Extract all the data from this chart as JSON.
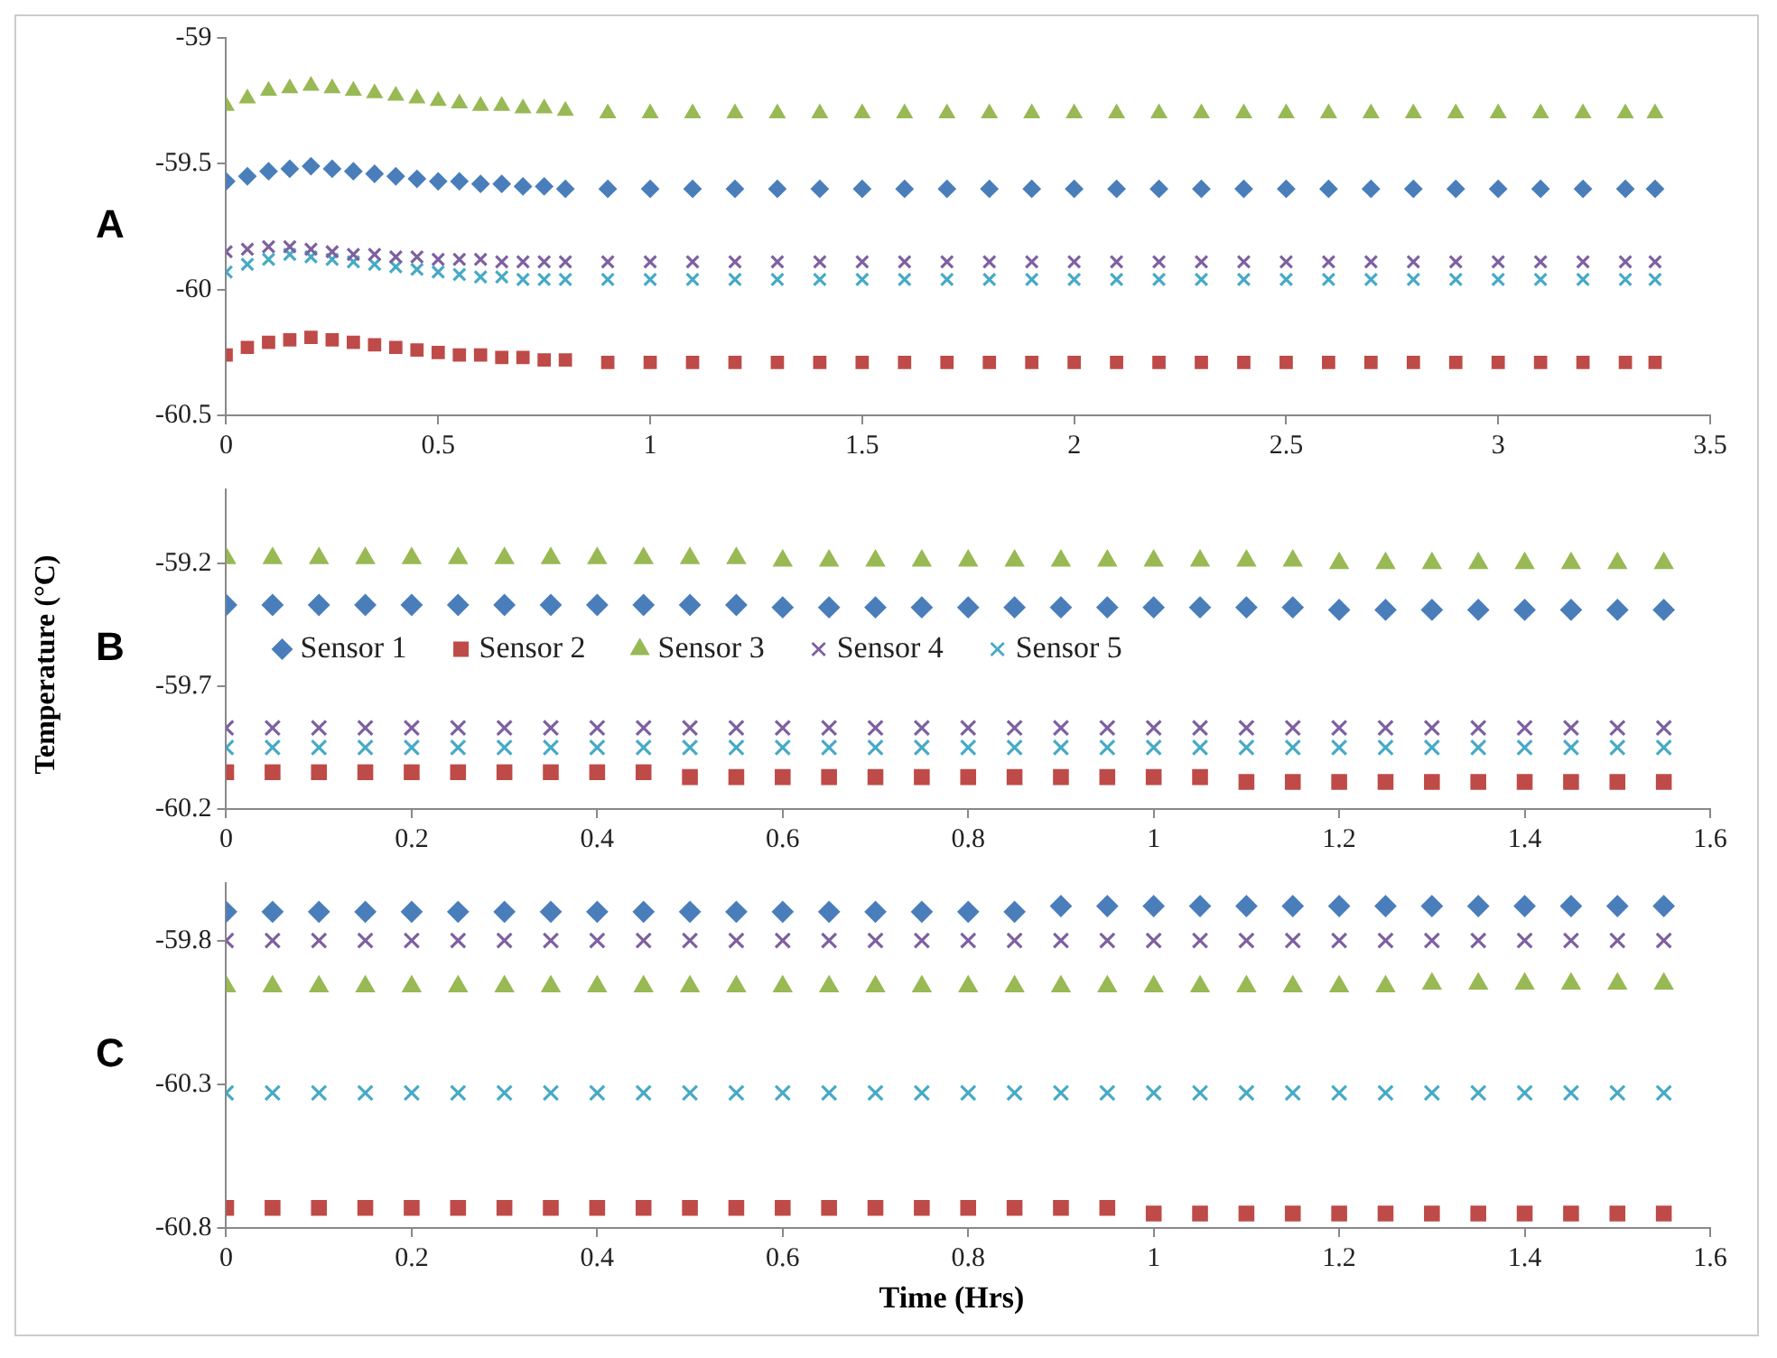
{
  "chart_data": [
    {
      "type": "scatter",
      "annotations": [
        "A"
      ],
      "x": [
        0,
        0.05,
        0.1,
        0.15,
        0.2,
        0.25,
        0.3,
        0.35,
        0.4,
        0.45,
        0.5,
        0.55,
        0.6,
        0.65,
        0.7,
        0.75,
        0.8,
        0.9,
        1,
        1.1,
        1.2,
        1.3,
        1.4,
        1.5,
        1.6,
        1.7,
        1.8,
        1.9,
        2,
        2.1,
        2.2,
        2.3,
        2.4,
        2.5,
        2.6,
        2.7,
        2.8,
        2.9,
        3,
        3.1,
        3.2,
        3.3,
        3.37
      ],
      "xlim": [
        0,
        3.5
      ],
      "xticks": [
        0,
        0.5,
        1,
        1.5,
        2,
        2.5,
        3,
        3.5
      ],
      "ylim": [
        -60.5,
        -59
      ],
      "yticks": [
        -60.5,
        -60,
        -59.5,
        -59
      ],
      "grid": false,
      "series": [
        {
          "color": "#4a7ebb",
          "marker": "diamond",
          "values": [
            -59.57,
            -59.55,
            -59.53,
            -59.52,
            -59.51,
            -59.52,
            -59.53,
            -59.54,
            -59.55,
            -59.56,
            -59.57,
            -59.57,
            -59.58,
            -59.58,
            -59.59,
            -59.59,
            -59.6,
            -59.6,
            -59.6,
            -59.6,
            -59.6,
            -59.6,
            -59.6,
            -59.6,
            -59.6,
            -59.6,
            -59.6,
            -59.6,
            -59.6,
            -59.6,
            -59.6,
            -59.6,
            -59.6,
            -59.6,
            -59.6,
            -59.6,
            -59.6,
            -59.6,
            -59.6,
            -59.6,
            -59.6,
            -59.6,
            -59.6
          ]
        },
        {
          "color": "#be4b48",
          "marker": "square",
          "values": [
            -60.26,
            -60.23,
            -60.21,
            -60.2,
            -60.19,
            -60.2,
            -60.21,
            -60.22,
            -60.23,
            -60.24,
            -60.25,
            -60.26,
            -60.26,
            -60.27,
            -60.27,
            -60.28,
            -60.28,
            -60.29,
            -60.29,
            -60.29,
            -60.29,
            -60.29,
            -60.29,
            -60.29,
            -60.29,
            -60.29,
            -60.29,
            -60.29,
            -60.29,
            -60.29,
            -60.29,
            -60.29,
            -60.29,
            -60.29,
            -60.29,
            -60.29,
            -60.29,
            -60.29,
            -60.29,
            -60.29,
            -60.29,
            -60.29,
            -60.29
          ]
        },
        {
          "color": "#98b954",
          "marker": "triangle",
          "values": [
            -59.27,
            -59.24,
            -59.21,
            -59.2,
            -59.19,
            -59.2,
            -59.21,
            -59.22,
            -59.23,
            -59.24,
            -59.25,
            -59.26,
            -59.27,
            -59.27,
            -59.28,
            -59.28,
            -59.29,
            -59.3,
            -59.3,
            -59.3,
            -59.3,
            -59.3,
            -59.3,
            -59.3,
            -59.3,
            -59.3,
            -59.3,
            -59.3,
            -59.3,
            -59.3,
            -59.3,
            -59.3,
            -59.3,
            -59.3,
            -59.3,
            -59.3,
            -59.3,
            -59.3,
            -59.3,
            -59.3,
            -59.3,
            -59.3,
            -59.3
          ]
        },
        {
          "color": "#7d60a0",
          "marker": "cross",
          "values": [
            -59.85,
            -59.84,
            -59.83,
            -59.83,
            -59.84,
            -59.85,
            -59.86,
            -59.86,
            -59.87,
            -59.87,
            -59.88,
            -59.88,
            -59.88,
            -59.89,
            -59.89,
            -59.89,
            -59.89,
            -59.89,
            -59.89,
            -59.89,
            -59.89,
            -59.89,
            -59.89,
            -59.89,
            -59.89,
            -59.89,
            -59.89,
            -59.89,
            -59.89,
            -59.89,
            -59.89,
            -59.89,
            -59.89,
            -59.89,
            -59.89,
            -59.89,
            -59.89,
            -59.89,
            -59.89,
            -59.89,
            -59.89,
            -59.89,
            -59.89
          ]
        },
        {
          "color": "#46aac5",
          "marker": "cross",
          "values": [
            -59.93,
            -59.9,
            -59.88,
            -59.86,
            -59.87,
            -59.88,
            -59.89,
            -59.9,
            -59.91,
            -59.92,
            -59.93,
            -59.94,
            -59.95,
            -59.95,
            -59.96,
            -59.96,
            -59.96,
            -59.96,
            -59.96,
            -59.96,
            -59.96,
            -59.96,
            -59.96,
            -59.96,
            -59.96,
            -59.96,
            -59.96,
            -59.96,
            -59.96,
            -59.96,
            -59.96,
            -59.96,
            -59.96,
            -59.96,
            -59.96,
            -59.96,
            -59.96,
            -59.96,
            -59.96,
            -59.96,
            -59.96,
            -59.96,
            -59.96
          ]
        }
      ]
    },
    {
      "type": "scatter",
      "annotations": [
        "B"
      ],
      "ylabel": "Temperature (°C)",
      "legend": "left",
      "x": [
        0,
        0.05,
        0.1,
        0.15,
        0.2,
        0.25,
        0.3,
        0.35,
        0.4,
        0.45,
        0.5,
        0.55,
        0.6,
        0.65,
        0.7,
        0.75,
        0.8,
        0.85,
        0.9,
        0.95,
        1,
        1.05,
        1.1,
        1.15,
        1.2,
        1.25,
        1.3,
        1.35,
        1.4,
        1.45,
        1.5,
        1.55
      ],
      "xlim": [
        0,
        1.6
      ],
      "xticks": [
        0,
        0.2,
        0.4,
        0.6,
        0.8,
        1,
        1.2,
        1.4,
        1.6
      ],
      "ylim": [
        -60.2,
        -58.9
      ],
      "yticks": [
        -60.2,
        -59.7,
        -59.2
      ],
      "grid": false,
      "series": [
        {
          "name": "Sensor 1",
          "color": "#4a7ebb",
          "marker": "diamond",
          "values": [
            -59.37,
            -59.37,
            -59.37,
            -59.37,
            -59.37,
            -59.37,
            -59.37,
            -59.37,
            -59.37,
            -59.37,
            -59.37,
            -59.37,
            -59.38,
            -59.38,
            -59.38,
            -59.38,
            -59.38,
            -59.38,
            -59.38,
            -59.38,
            -59.38,
            -59.38,
            -59.38,
            -59.38,
            -59.39,
            -59.39,
            -59.39,
            -59.39,
            -59.39,
            -59.39,
            -59.39,
            -59.39
          ]
        },
        {
          "name": "Sensor 2",
          "color": "#be4b48",
          "marker": "square",
          "values": [
            -60.05,
            -60.05,
            -60.05,
            -60.05,
            -60.05,
            -60.05,
            -60.05,
            -60.05,
            -60.05,
            -60.05,
            -60.07,
            -60.07,
            -60.07,
            -60.07,
            -60.07,
            -60.07,
            -60.07,
            -60.07,
            -60.07,
            -60.07,
            -60.07,
            -60.07,
            -60.09,
            -60.09,
            -60.09,
            -60.09,
            -60.09,
            -60.09,
            -60.09,
            -60.09,
            -60.09,
            -60.09
          ]
        },
        {
          "name": "Sensor 3",
          "color": "#98b954",
          "marker": "triangle",
          "values": [
            -59.18,
            -59.18,
            -59.18,
            -59.18,
            -59.18,
            -59.18,
            -59.18,
            -59.18,
            -59.18,
            -59.18,
            -59.18,
            -59.18,
            -59.19,
            -59.19,
            -59.19,
            -59.19,
            -59.19,
            -59.19,
            -59.19,
            -59.19,
            -59.19,
            -59.19,
            -59.19,
            -59.19,
            -59.2,
            -59.2,
            -59.2,
            -59.2,
            -59.2,
            -59.2,
            -59.2,
            -59.2
          ]
        },
        {
          "name": "Sensor 4",
          "color": "#7d60a0",
          "marker": "cross",
          "values": [
            -59.87,
            -59.87,
            -59.87,
            -59.87,
            -59.87,
            -59.87,
            -59.87,
            -59.87,
            -59.87,
            -59.87,
            -59.87,
            -59.87,
            -59.87,
            -59.87,
            -59.87,
            -59.87,
            -59.87,
            -59.87,
            -59.87,
            -59.87,
            -59.87,
            -59.87,
            -59.87,
            -59.87,
            -59.87,
            -59.87,
            -59.87,
            -59.87,
            -59.87,
            -59.87,
            -59.87,
            -59.87
          ]
        },
        {
          "name": "Sensor 5",
          "color": "#46aac5",
          "marker": "cross",
          "values": [
            -59.95,
            -59.95,
            -59.95,
            -59.95,
            -59.95,
            -59.95,
            -59.95,
            -59.95,
            -59.95,
            -59.95,
            -59.95,
            -59.95,
            -59.95,
            -59.95,
            -59.95,
            -59.95,
            -59.95,
            -59.95,
            -59.95,
            -59.95,
            -59.95,
            -59.95,
            -59.95,
            -59.95,
            -59.95,
            -59.95,
            -59.95,
            -59.95,
            -59.95,
            -59.95,
            -59.95,
            -59.95
          ]
        }
      ]
    },
    {
      "type": "scatter",
      "annotations": [
        "C"
      ],
      "xlabel": "Time (Hrs)",
      "x": [
        0,
        0.05,
        0.1,
        0.15,
        0.2,
        0.25,
        0.3,
        0.35,
        0.4,
        0.45,
        0.5,
        0.55,
        0.6,
        0.65,
        0.7,
        0.75,
        0.8,
        0.85,
        0.9,
        0.95,
        1,
        1.05,
        1.1,
        1.15,
        1.2,
        1.25,
        1.3,
        1.35,
        1.4,
        1.45,
        1.5,
        1.55
      ],
      "xlim": [
        0,
        1.6
      ],
      "xticks": [
        0,
        0.2,
        0.4,
        0.6,
        0.8,
        1,
        1.2,
        1.4,
        1.6
      ],
      "ylim": [
        -60.8,
        -59.6
      ],
      "yticks": [
        -60.8,
        -60.3,
        -59.8
      ],
      "grid": false,
      "series": [
        {
          "color": "#4a7ebb",
          "marker": "diamond",
          "values": [
            -59.7,
            -59.7,
            -59.7,
            -59.7,
            -59.7,
            -59.7,
            -59.7,
            -59.7,
            -59.7,
            -59.7,
            -59.7,
            -59.7,
            -59.7,
            -59.7,
            -59.7,
            -59.7,
            -59.7,
            -59.7,
            -59.68,
            -59.68,
            -59.68,
            -59.68,
            -59.68,
            -59.68,
            -59.68,
            -59.68,
            -59.68,
            -59.68,
            -59.68,
            -59.68,
            -59.68,
            -59.68
          ]
        },
        {
          "color": "#be4b48",
          "marker": "square",
          "values": [
            -60.73,
            -60.73,
            -60.73,
            -60.73,
            -60.73,
            -60.73,
            -60.73,
            -60.73,
            -60.73,
            -60.73,
            -60.73,
            -60.73,
            -60.73,
            -60.73,
            -60.73,
            -60.73,
            -60.73,
            -60.73,
            -60.73,
            -60.73,
            -60.75,
            -60.75,
            -60.75,
            -60.75,
            -60.75,
            -60.75,
            -60.75,
            -60.75,
            -60.75,
            -60.75,
            -60.75,
            -60.75
          ]
        },
        {
          "color": "#98b954",
          "marker": "triangle",
          "values": [
            -59.96,
            -59.96,
            -59.96,
            -59.96,
            -59.96,
            -59.96,
            -59.96,
            -59.96,
            -59.96,
            -59.96,
            -59.96,
            -59.96,
            -59.96,
            -59.96,
            -59.96,
            -59.96,
            -59.96,
            -59.96,
            -59.96,
            -59.96,
            -59.96,
            -59.96,
            -59.96,
            -59.96,
            -59.96,
            -59.96,
            -59.95,
            -59.95,
            -59.95,
            -59.95,
            -59.95,
            -59.95
          ]
        },
        {
          "color": "#7d60a0",
          "marker": "cross",
          "values": [
            -59.8,
            -59.8,
            -59.8,
            -59.8,
            -59.8,
            -59.8,
            -59.8,
            -59.8,
            -59.8,
            -59.8,
            -59.8,
            -59.8,
            -59.8,
            -59.8,
            -59.8,
            -59.8,
            -59.8,
            -59.8,
            -59.8,
            -59.8,
            -59.8,
            -59.8,
            -59.8,
            -59.8,
            -59.8,
            -59.8,
            -59.8,
            -59.8,
            -59.8,
            -59.8,
            -59.8,
            -59.8
          ]
        },
        {
          "color": "#46aac5",
          "marker": "cross",
          "values": [
            -60.33,
            -60.33,
            -60.33,
            -60.33,
            -60.33,
            -60.33,
            -60.33,
            -60.33,
            -60.33,
            -60.33,
            -60.33,
            -60.33,
            -60.33,
            -60.33,
            -60.33,
            -60.33,
            -60.33,
            -60.33,
            -60.33,
            -60.33,
            -60.33,
            -60.33,
            -60.33,
            -60.33,
            -60.33,
            -60.33,
            -60.33,
            -60.33,
            -60.33,
            -60.33,
            -60.33,
            -60.33
          ]
        }
      ]
    }
  ]
}
